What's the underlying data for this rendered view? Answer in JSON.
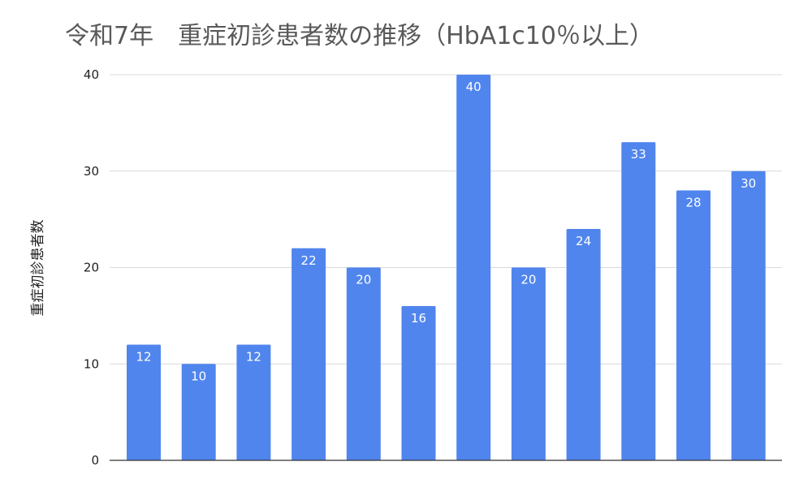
{
  "chart_data": {
    "type": "bar",
    "title": "令和7年　重症初診患者数の推移（HbA1c10％以上）",
    "xlabel": "",
    "ylabel": "重症初診患者数",
    "ylim": [
      0,
      40
    ],
    "yticks": [
      0,
      10,
      20,
      30,
      40
    ],
    "grid": true,
    "legend": "none",
    "categories": [
      "",
      "",
      "",
      "",
      "",
      "",
      "",
      "",
      "",
      "",
      "",
      ""
    ],
    "series": [
      {
        "values": [
          12,
          10,
          12,
          22,
          20,
          16,
          40,
          20,
          24,
          33,
          28,
          30
        ]
      }
    ],
    "data_labels": [
      "12",
      "10",
      "12",
      "22",
      "20",
      "16",
      "40",
      "20",
      "24",
      "33",
      "28",
      "30"
    ],
    "colors": {
      "bar": "#5085EE",
      "title": "#595959",
      "grid": "#D9D9D9"
    }
  }
}
